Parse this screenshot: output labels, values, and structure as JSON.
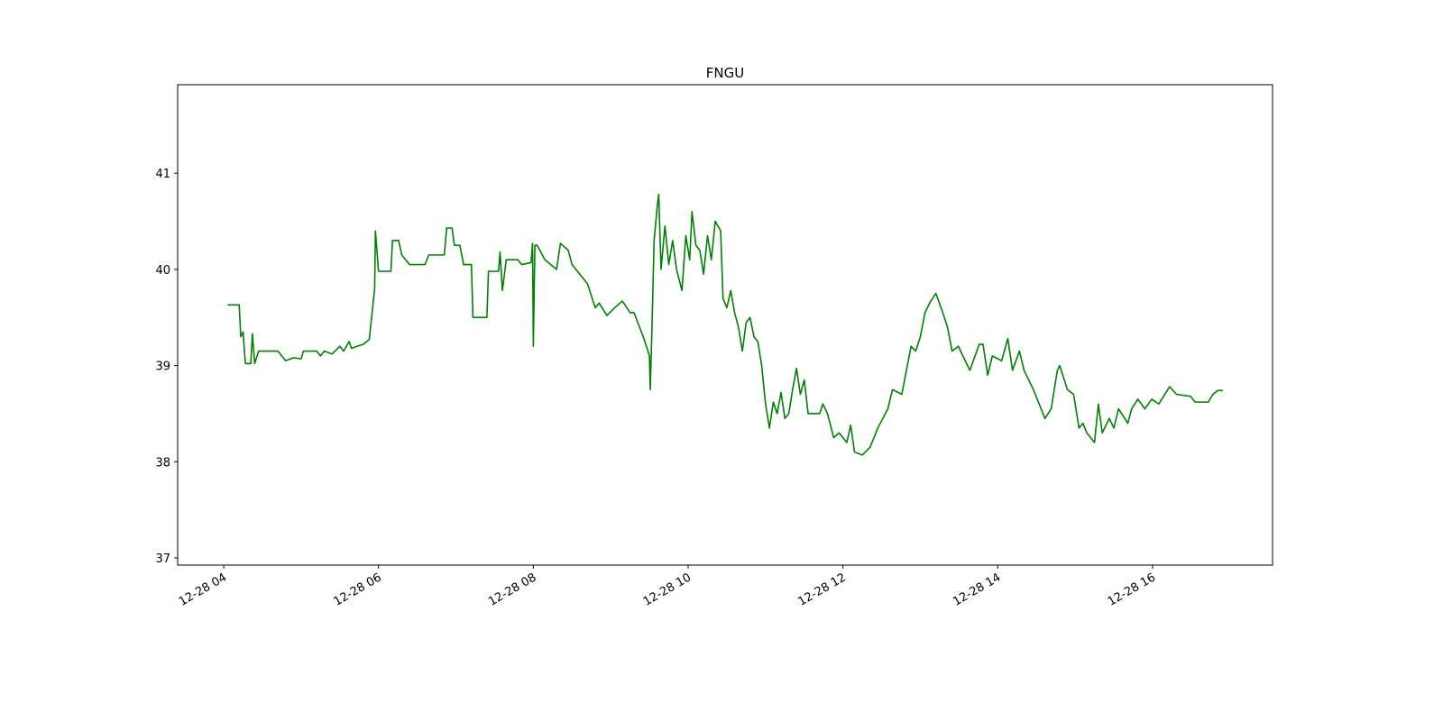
{
  "chart_data": {
    "type": "line",
    "title": "FNGU",
    "color": "#008000",
    "x": [
      4.05,
      4.2,
      4.22,
      4.25,
      4.28,
      4.35,
      4.37,
      4.4,
      4.45,
      4.7,
      4.8,
      4.9,
      5.0,
      5.03,
      5.2,
      5.25,
      5.3,
      5.4,
      5.5,
      5.55,
      5.62,
      5.65,
      5.8,
      5.88,
      5.95,
      5.96,
      6.0,
      6.16,
      6.18,
      6.26,
      6.3,
      6.4,
      6.6,
      6.65,
      6.85,
      6.88,
      6.95,
      6.98,
      7.05,
      7.1,
      7.2,
      7.22,
      7.4,
      7.42,
      7.55,
      7.57,
      7.6,
      7.65,
      7.8,
      7.85,
      7.97,
      7.99,
      8.0,
      8.02,
      8.05,
      8.15,
      8.3,
      8.35,
      8.45,
      8.5,
      8.6,
      8.7,
      8.8,
      8.85,
      8.95,
      9.05,
      9.15,
      9.25,
      9.3,
      9.42,
      9.5,
      9.51,
      9.53,
      9.56,
      9.6,
      9.62,
      9.65,
      9.7,
      9.75,
      9.8,
      9.85,
      9.92,
      9.97,
      10.02,
      10.05,
      10.1,
      10.15,
      10.2,
      10.25,
      10.3,
      10.35,
      10.42,
      10.45,
      10.5,
      10.55,
      10.6,
      10.65,
      10.7,
      10.75,
      10.8,
      10.85,
      10.9,
      10.95,
      11.0,
      11.05,
      11.1,
      11.15,
      11.2,
      11.25,
      11.3,
      11.35,
      11.4,
      11.45,
      11.5,
      11.55,
      11.6,
      11.7,
      11.74,
      11.8,
      11.88,
      11.95,
      12.05,
      12.1,
      12.15,
      12.25,
      12.35,
      12.45,
      12.58,
      12.64,
      12.76,
      12.88,
      12.94,
      13.0,
      13.06,
      13.12,
      13.2,
      13.29,
      13.35,
      13.41,
      13.49,
      13.58,
      13.64,
      13.76,
      13.81,
      13.87,
      13.93,
      14.05,
      14.13,
      14.19,
      14.28,
      14.34,
      14.46,
      14.61,
      14.69,
      14.77,
      14.8,
      14.9,
      14.98,
      15.05,
      15.1,
      15.15,
      15.25,
      15.3,
      15.35,
      15.44,
      15.5,
      15.56,
      15.68,
      15.73,
      15.81,
      15.9,
      15.99,
      16.08,
      16.22,
      16.31,
      16.49,
      16.55,
      16.72,
      16.78,
      16.84,
      16.91
    ],
    "values": [
      39.63,
      39.63,
      39.3,
      39.35,
      39.02,
      39.02,
      39.33,
      39.02,
      39.15,
      39.15,
      39.05,
      39.08,
      39.07,
      39.15,
      39.15,
      39.1,
      39.15,
      39.12,
      39.2,
      39.15,
      39.25,
      39.18,
      39.22,
      39.27,
      39.8,
      40.4,
      39.98,
      39.98,
      40.3,
      40.3,
      40.15,
      40.05,
      40.05,
      40.15,
      40.15,
      40.43,
      40.43,
      40.25,
      40.25,
      40.05,
      40.05,
      39.5,
      39.5,
      39.98,
      39.98,
      40.18,
      39.78,
      40.1,
      40.1,
      40.05,
      40.07,
      40.27,
      39.2,
      40.25,
      40.25,
      40.1,
      40.0,
      40.27,
      40.2,
      40.05,
      39.95,
      39.85,
      39.6,
      39.65,
      39.52,
      39.6,
      39.67,
      39.55,
      39.55,
      39.3,
      39.1,
      38.75,
      39.3,
      40.3,
      40.65,
      40.78,
      40.0,
      40.45,
      40.05,
      40.3,
      40.0,
      39.78,
      40.35,
      40.1,
      40.6,
      40.25,
      40.2,
      39.95,
      40.35,
      40.1,
      40.5,
      40.4,
      39.7,
      39.6,
      39.78,
      39.55,
      39.4,
      39.15,
      39.45,
      39.5,
      39.3,
      39.25,
      39.0,
      38.6,
      38.35,
      38.62,
      38.5,
      38.72,
      38.45,
      38.5,
      38.75,
      38.97,
      38.7,
      38.85,
      38.5,
      38.5,
      38.5,
      38.6,
      38.5,
      38.25,
      38.3,
      38.2,
      38.38,
      38.1,
      38.07,
      38.15,
      38.35,
      38.55,
      38.75,
      38.7,
      39.2,
      39.15,
      39.3,
      39.55,
      39.65,
      39.75,
      39.55,
      39.4,
      39.15,
      39.2,
      39.05,
      38.95,
      39.22,
      39.22,
      38.9,
      39.1,
      39.05,
      39.28,
      38.95,
      39.15,
      38.95,
      38.75,
      38.45,
      38.55,
      38.95,
      39.0,
      38.75,
      38.7,
      38.35,
      38.4,
      38.3,
      38.2,
      38.6,
      38.3,
      38.45,
      38.35,
      38.55,
      38.4,
      38.55,
      38.65,
      38.55,
      38.65,
      38.6,
      38.78,
      38.7,
      38.68,
      38.62,
      38.62,
      38.7,
      38.74,
      38.74
    ],
    "xlim": [
      3.405,
      17.55
    ],
    "xticks": [
      {
        "value": 4,
        "label": "12-28 04"
      },
      {
        "value": 6,
        "label": "12-28 06"
      },
      {
        "value": 8,
        "label": "12-28 08"
      },
      {
        "value": 10,
        "label": "12-28 10"
      },
      {
        "value": 12,
        "label": "12-28 12"
      },
      {
        "value": 14,
        "label": "12-28 14"
      },
      {
        "value": 16,
        "label": "12-28 16"
      }
    ],
    "ylim": [
      36.925,
      41.92
    ],
    "yticks": [
      37,
      38,
      39,
      40,
      41
    ]
  }
}
